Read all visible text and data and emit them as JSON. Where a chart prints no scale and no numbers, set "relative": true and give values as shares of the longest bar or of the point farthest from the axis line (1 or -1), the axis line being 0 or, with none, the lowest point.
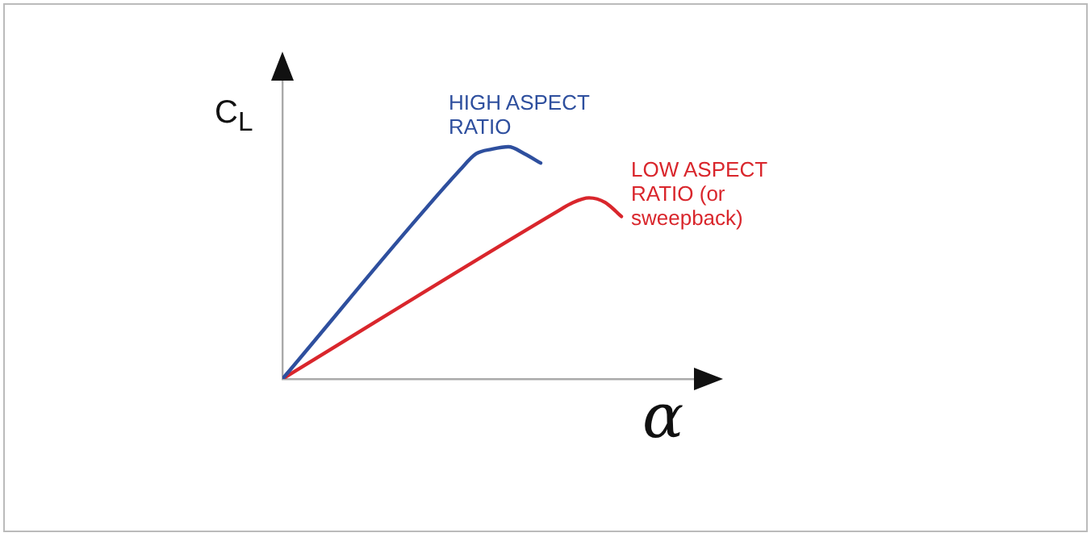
{
  "chart_data": {
    "type": "line",
    "relative": true,
    "xlabel": "α",
    "ylabel": "C$_{L}$",
    "categories": [
      null,
      null,
      null,
      null,
      null,
      null,
      null,
      null,
      null,
      null,
      null,
      null,
      null,
      null,
      null,
      null,
      null,
      null,
      null,
      null,
      null,
      null
    ],
    "legend": false,
    "grid": false,
    "marker": "none",
    "line_style": "solid",
    "series": [
      {
        "name": "HIGH ASPECT RATIO",
        "color": "#2e4f9e",
        "values": [
          0,
          null,
          null,
          null,
          null,
          null,
          null,
          null,
          null,
          null,
          null,
          0.9,
          0.97,
          0.99,
          1,
          0.97,
          0.93,
          null,
          null,
          null,
          null,
          null
        ]
      },
      {
        "name": "LOW ASPECT RATIO (or sweepback)",
        "color": "#d9262c",
        "values": [
          0,
          null,
          null,
          null,
          null,
          null,
          null,
          null,
          null,
          null,
          null,
          null,
          null,
          null,
          null,
          null,
          null,
          0.72,
          0.76,
          0.78,
          0.76,
          0.7
        ]
      }
    ]
  }
}
